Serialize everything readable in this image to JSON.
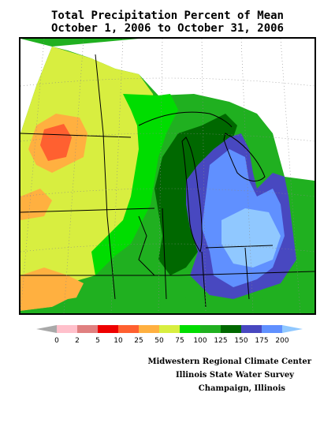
{
  "title_line1": "Total Precipitation Percent of Mean",
  "title_line2": "October 1, 2006 to October 31, 2006",
  "legend": {
    "colors": [
      "#a9a9a9",
      "#ffc0cb",
      "#e08080",
      "#ee0000",
      "#ff6030",
      "#ffb040",
      "#d8ee40",
      "#00dd00",
      "#20b020",
      "#006800",
      "#4848c0",
      "#6090ff",
      "#90c8ff"
    ],
    "labels": [
      "0",
      "2",
      "5",
      "10",
      "25",
      "50",
      "75",
      "100",
      "125",
      "150",
      "175",
      "200"
    ]
  },
  "credits": {
    "line1": "Midwestern Regional Climate Center",
    "line2": "Illinois State Water Survey",
    "line3": "Champaign, Illinois"
  }
}
